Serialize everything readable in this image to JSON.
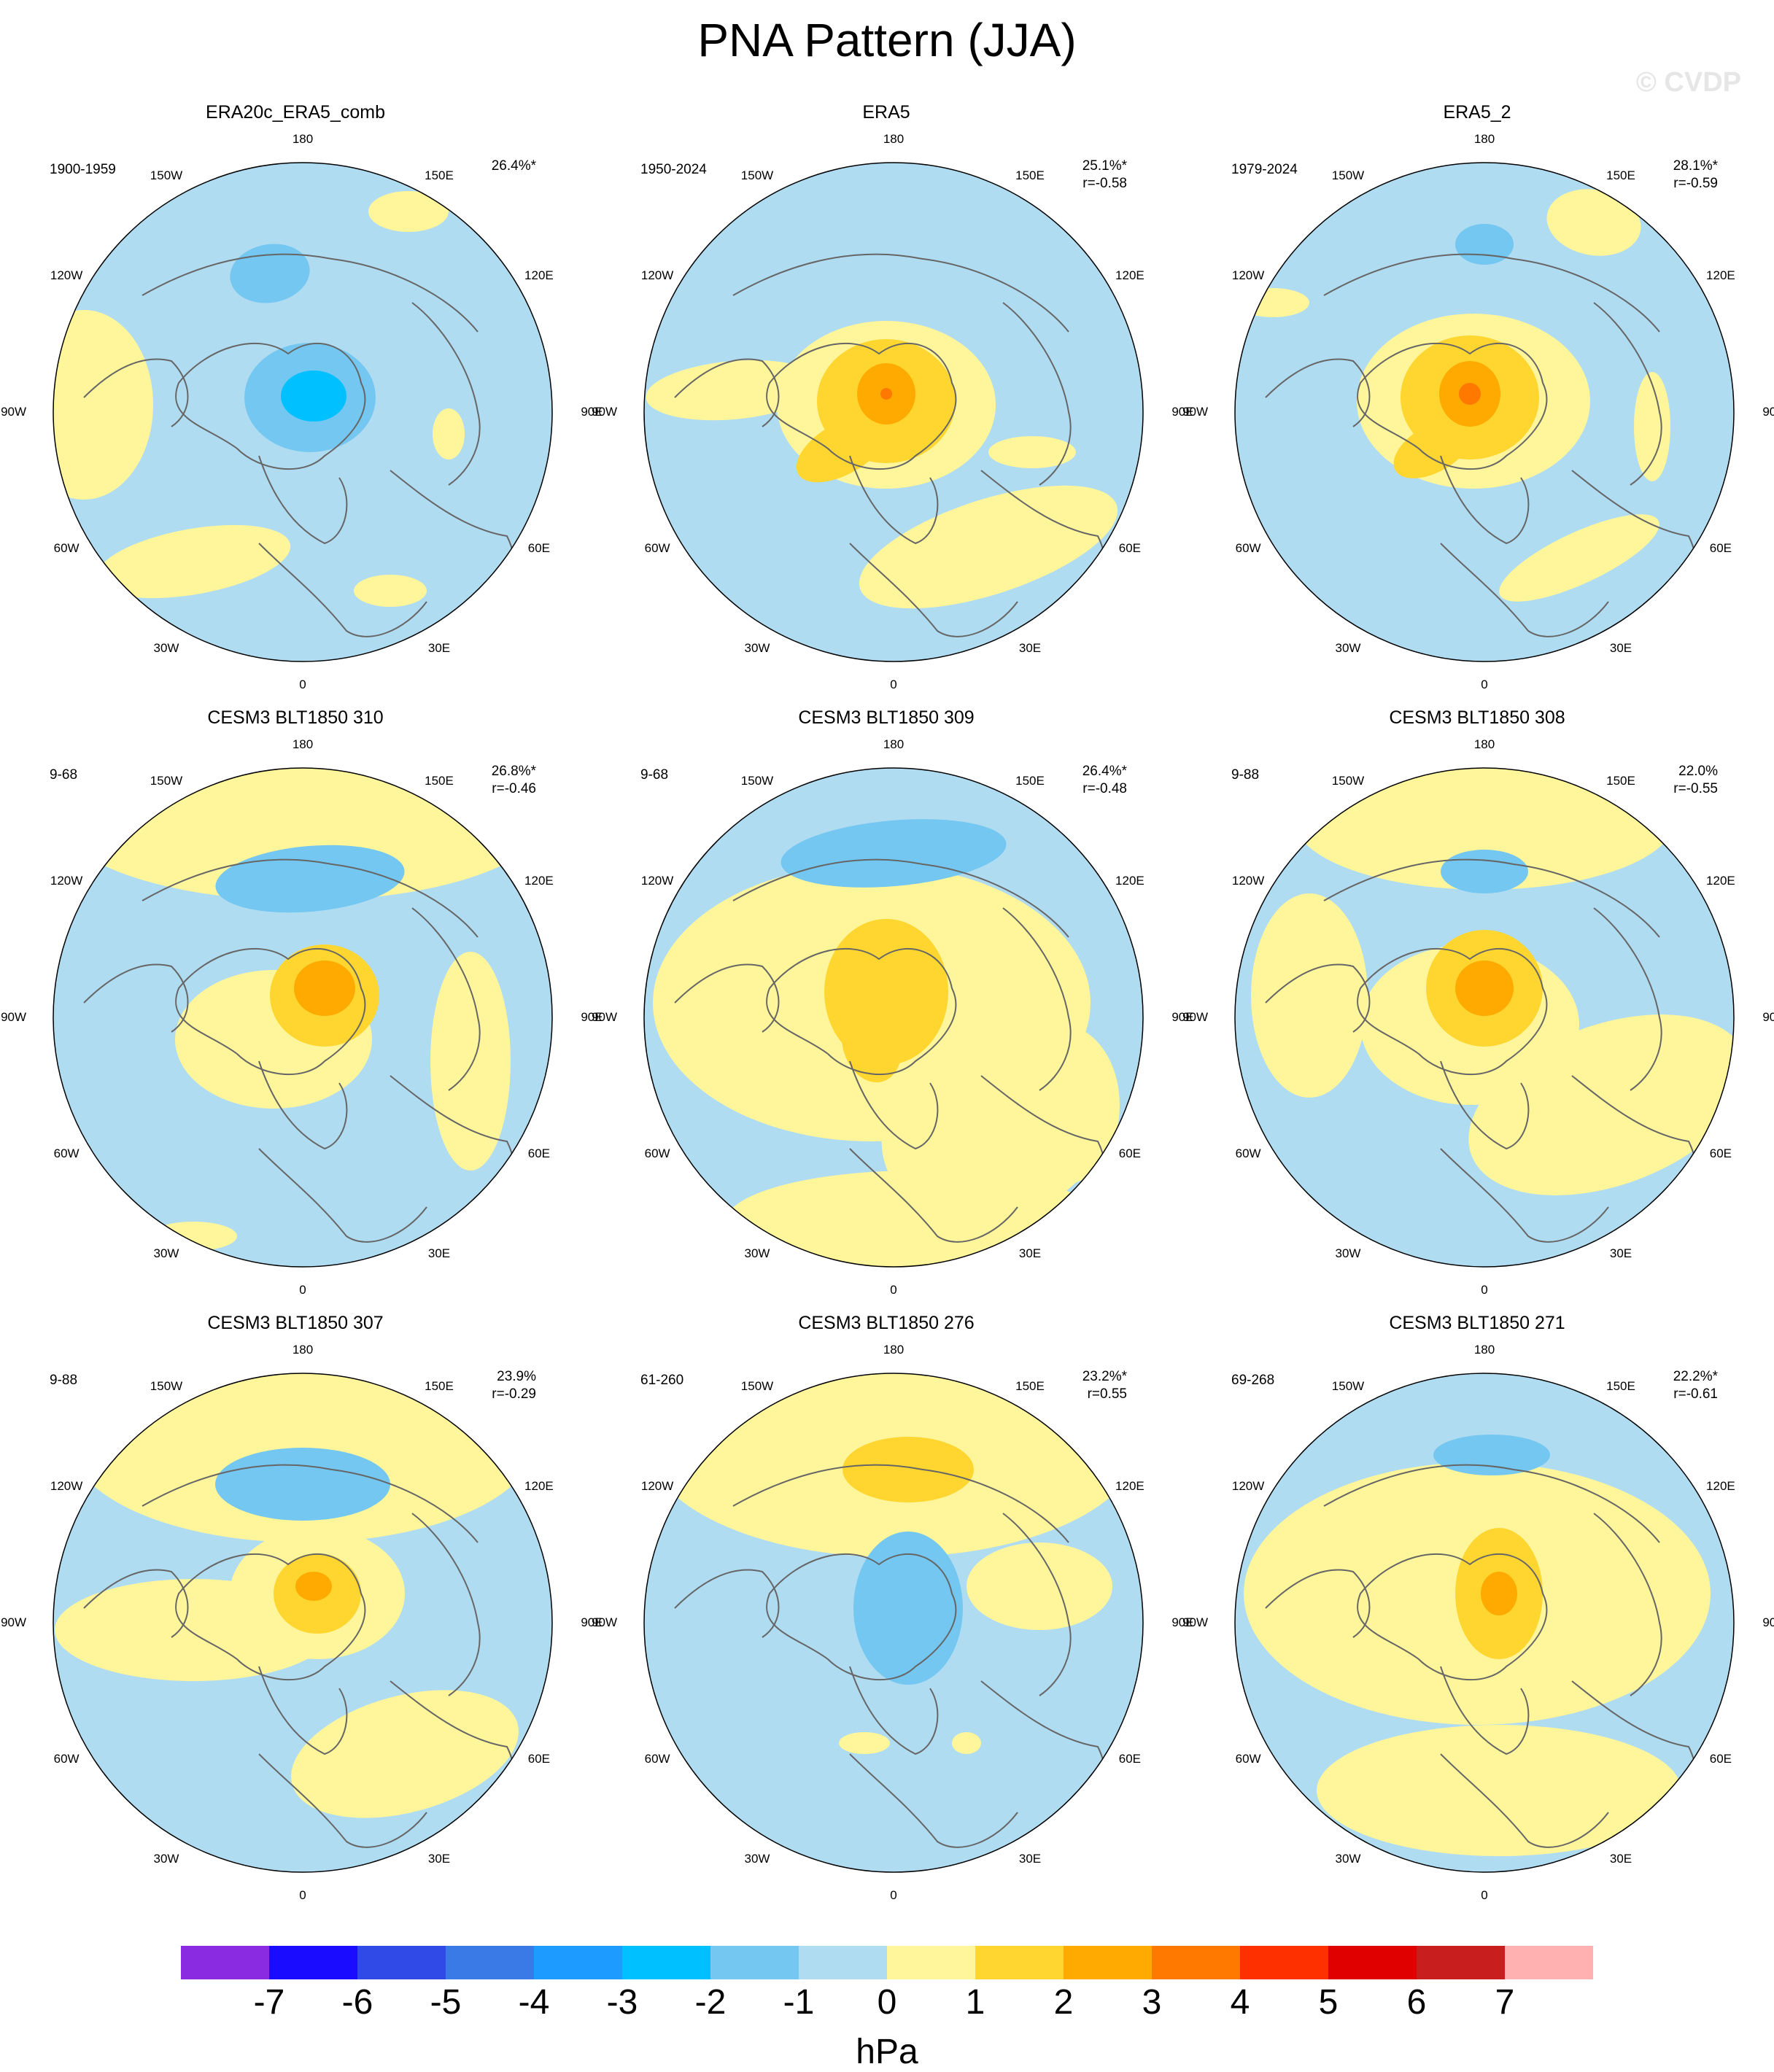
{
  "title": "PNA Pattern (JJA)",
  "watermark": "© CVDP",
  "lon_labels": [
    "180",
    "150E",
    "120E",
    "90E",
    "60E",
    "30E",
    "0",
    "30W",
    "60W",
    "90W",
    "120W",
    "150W"
  ],
  "panels": [
    {
      "title": "ERA20c_ERA5_comb",
      "period": "1900-1959",
      "pct": "26.4%*",
      "r": ""
    },
    {
      "title": "ERA5",
      "period": "1950-2024",
      "pct": "25.1%*",
      "r": "r=-0.58"
    },
    {
      "title": "ERA5_2",
      "period": "1979-2024",
      "pct": "28.1%*",
      "r": "r=-0.59"
    },
    {
      "title": "CESM3 BLT1850 310",
      "period": "9-68",
      "pct": "26.8%*",
      "r": "r=-0.46"
    },
    {
      "title": "CESM3 BLT1850 309",
      "period": "9-68",
      "pct": "26.4%*",
      "r": "r=-0.48"
    },
    {
      "title": "CESM3 BLT1850 308",
      "period": "9-88",
      "pct": "22.0%",
      "r": "r=-0.55"
    },
    {
      "title": "CESM3 BLT1850 307",
      "period": "9-88",
      "pct": "23.9%",
      "r": "r=-0.29"
    },
    {
      "title": "CESM3 BLT1850 276",
      "period": "61-260",
      "pct": "23.2%*",
      "r": "r=0.55"
    },
    {
      "title": "CESM3 BLT1850 271",
      "period": "69-268",
      "pct": "22.2%*",
      "r": "r=-0.61"
    }
  ],
  "colorbar": {
    "units": "hPa",
    "labels": [
      "-7",
      "-6",
      "-5",
      "-4",
      "-3",
      "-2",
      "-1",
      "0",
      "1",
      "2",
      "3",
      "4",
      "5",
      "6",
      "7"
    ],
    "colors": [
      "#8a2be2",
      "#1a0dff",
      "#2f4ae6",
      "#3a7ae6",
      "#1e9bff",
      "#00c0ff",
      "#74c7f0",
      "#b0dcf2",
      "#fff59a",
      "#ffd630",
      "#ffaa00",
      "#ff7800",
      "#ff3000",
      "#e00000",
      "#c81e1e",
      "#ffb0b0"
    ]
  },
  "colors": {
    "neg1": "#b0dcf2",
    "neg2": "#74c7f0",
    "neg3": "#00c0ff",
    "pos1": "#fff59a",
    "pos2": "#ffd630",
    "pos3": "#ffaa00",
    "pos4": "#ff7800",
    "coast": "#666666"
  }
}
